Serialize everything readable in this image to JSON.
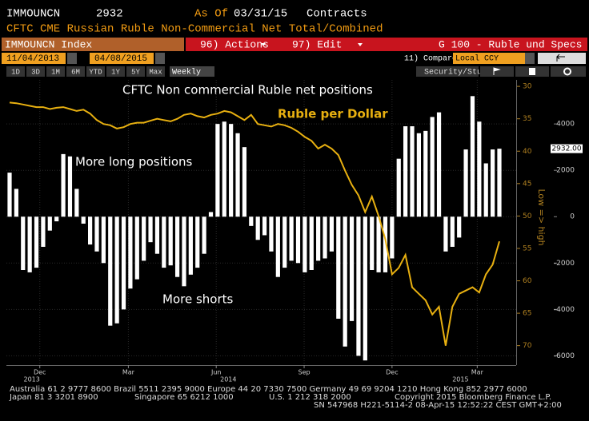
{
  "header": {
    "ticker": "IMMOUNCN",
    "last": "2932",
    "as_of_label": "As Of",
    "as_of": "03/31/15",
    "units": "Contracts",
    "description": "CFTC CME Russian Ruble Non-Commercial Net Total/Combined"
  },
  "toolbar": {
    "security": "IMMOUNCN Index",
    "actions": "96) Actions",
    "edit": "97) Edit",
    "page": "G 100 - Ruble und Specs",
    "start_date": "11/04/2013",
    "end_date": "04/08/2015",
    "compare": "11) Compare",
    "currency": "Local CCY",
    "periods": [
      "1D",
      "3D",
      "1M",
      "6M",
      "YTD",
      "1Y",
      "5Y",
      "Max"
    ],
    "frequency": "Weekly",
    "study": "Security/Study"
  },
  "footer": {
    "line1": "Australia 61 2 9777 8600 Brazil 5511 2395 9000 Europe 44 20 7330 7500 Germany 49 69 9204 1210 Hong Kong 852 2977 6000",
    "line2": [
      "Japan 81 3 3201 8900",
      "Singapore 65 6212 1000",
      "U.S. 1 212 318 2000",
      "Copyright 2015 Bloomberg Finance L.P."
    ],
    "line3": "SN 547968 H221-5114-2 08-Apr-15 12:52:22 CEST GMT+2:00"
  },
  "chart_data": {
    "type": "bar-line",
    "categories": [
      null,
      null,
      null,
      null,
      null,
      null,
      null,
      null,
      null,
      null,
      null,
      null,
      null,
      null,
      null,
      null,
      null,
      null,
      null,
      null,
      null,
      null,
      null,
      null,
      null,
      null,
      null,
      null,
      null,
      null,
      null,
      null,
      null,
      null,
      null,
      null,
      null,
      null,
      null,
      null,
      null,
      null,
      null,
      null,
      null,
      null,
      null,
      null,
      null,
      null,
      null,
      null,
      null,
      null,
      null,
      null,
      null,
      null,
      null,
      null,
      null,
      null,
      null,
      null,
      null,
      null,
      null,
      null,
      null,
      null,
      null,
      null,
      null,
      null
    ],
    "series": [
      {
        "name": "CFTC Non commercial Ruble net positions",
        "color": "#ffffff",
        "values": [
          1900,
          1200,
          -2300,
          -2400,
          -2200,
          -1300,
          -600,
          -200,
          2700,
          2600,
          1200,
          -300,
          -1200,
          -1500,
          -2000,
          -4700,
          -4600,
          -4000,
          -3100,
          -2700,
          -1900,
          -1100,
          -1600,
          -2200,
          -2100,
          -2600,
          -3000,
          -2500,
          -2200,
          -1600,
          200,
          4000,
          4100,
          4000,
          3600,
          3000,
          -400,
          -1000,
          -800,
          -1500,
          -2600,
          -2200,
          -1900,
          -2000,
          -2400,
          -2300,
          -1900,
          -1800,
          -1500,
          -4400,
          -5600,
          -4500,
          -6000,
          -6200,
          -2300,
          -2400,
          -2400,
          -1800,
          2500,
          3900,
          3900,
          3600,
          3700,
          4300,
          4500,
          -1500,
          -1300,
          -900,
          2900,
          5200,
          4100,
          2300,
          2900,
          2932
        ],
        "value_labels": [
          null,
          null,
          null,
          null,
          null,
          null,
          null,
          null,
          null,
          null,
          null,
          null,
          null,
          null,
          null,
          null,
          null,
          null,
          null,
          null,
          null,
          null,
          null,
          null,
          null,
          null,
          null,
          null,
          null,
          null,
          null,
          null,
          null,
          null,
          null,
          null,
          null,
          null,
          null,
          null,
          null,
          null,
          null,
          null,
          null,
          null,
          null,
          null,
          null,
          null,
          null,
          null,
          null,
          null,
          null,
          null,
          null,
          null,
          null,
          null,
          null,
          null,
          null,
          null,
          null,
          null,
          null,
          null,
          null,
          null,
          null,
          null,
          null,
          "2932.00"
        ]
      },
      {
        "name": "Ruble per Dollar",
        "color": "#e8b010",
        "axis": "y2",
        "values": [
          32.5,
          32.6,
          32.8,
          33.0,
          33.2,
          33.2,
          33.5,
          33.3,
          33.2,
          33.5,
          33.8,
          33.6,
          34.2,
          35.2,
          35.8,
          36.0,
          36.5,
          36.3,
          35.8,
          35.6,
          35.6,
          35.3,
          35.0,
          35.2,
          35.4,
          35.0,
          34.4,
          34.2,
          34.6,
          34.8,
          34.4,
          34.2,
          33.8,
          34.0,
          34.6,
          35.2,
          34.4,
          35.8,
          36.0,
          36.2,
          35.8,
          36.0,
          36.4,
          37.0,
          37.8,
          38.4,
          39.6,
          39.0,
          39.6,
          40.6,
          43.0,
          45.2,
          46.8,
          49.4,
          47.0,
          50.0,
          53.6,
          59.0,
          58.0,
          56.0,
          61.0,
          62.0,
          63.0,
          65.2,
          64.0,
          70.0,
          64.0,
          62.0,
          61.5,
          61.0,
          61.8,
          59.0,
          57.5,
          53.91285
        ],
        "value_labels": [
          null,
          null,
          null,
          null,
          null,
          null,
          null,
          null,
          null,
          null,
          null,
          null,
          null,
          null,
          null,
          null,
          null,
          null,
          null,
          null,
          null,
          null,
          null,
          null,
          null,
          null,
          null,
          null,
          null,
          null,
          null,
          null,
          null,
          null,
          null,
          null,
          null,
          null,
          null,
          null,
          null,
          null,
          null,
          null,
          null,
          null,
          null,
          null,
          null,
          null,
          null,
          null,
          null,
          null,
          null,
          null,
          null,
          null,
          null,
          null,
          null,
          null,
          null,
          null,
          null,
          null,
          null,
          null,
          null,
          null,
          null,
          null,
          null,
          null
        ]
      }
    ],
    "ylim": [
      -6400,
      5900
    ],
    "yticks": [
      -6000,
      -4000,
      -2000,
      0,
      2000,
      4000
    ],
    "y2lim": [
      73,
      29
    ],
    "y2ticks": [
      30,
      35,
      40,
      45,
      50,
      55,
      60,
      65,
      70
    ],
    "y2label": "Low => high",
    "xticks": [
      {
        "value": 4.5,
        "label": "Dec"
      },
      {
        "value": 17.7,
        "label": "Mar"
      },
      {
        "value": 30.8,
        "label": "Jun"
      },
      {
        "value": 43.9,
        "label": "Sep"
      },
      {
        "value": 57,
        "label": "Dec"
      },
      {
        "value": 69.7,
        "label": "Mar"
      }
    ],
    "year_labels": [
      {
        "value": 3.3,
        "label": "2013"
      },
      {
        "value": 32.6,
        "label": "2014"
      },
      {
        "value": 67.2,
        "label": "2015"
      }
    ],
    "annotations": [
      "More long positions",
      "More shorts"
    ],
    "grid": true
  }
}
